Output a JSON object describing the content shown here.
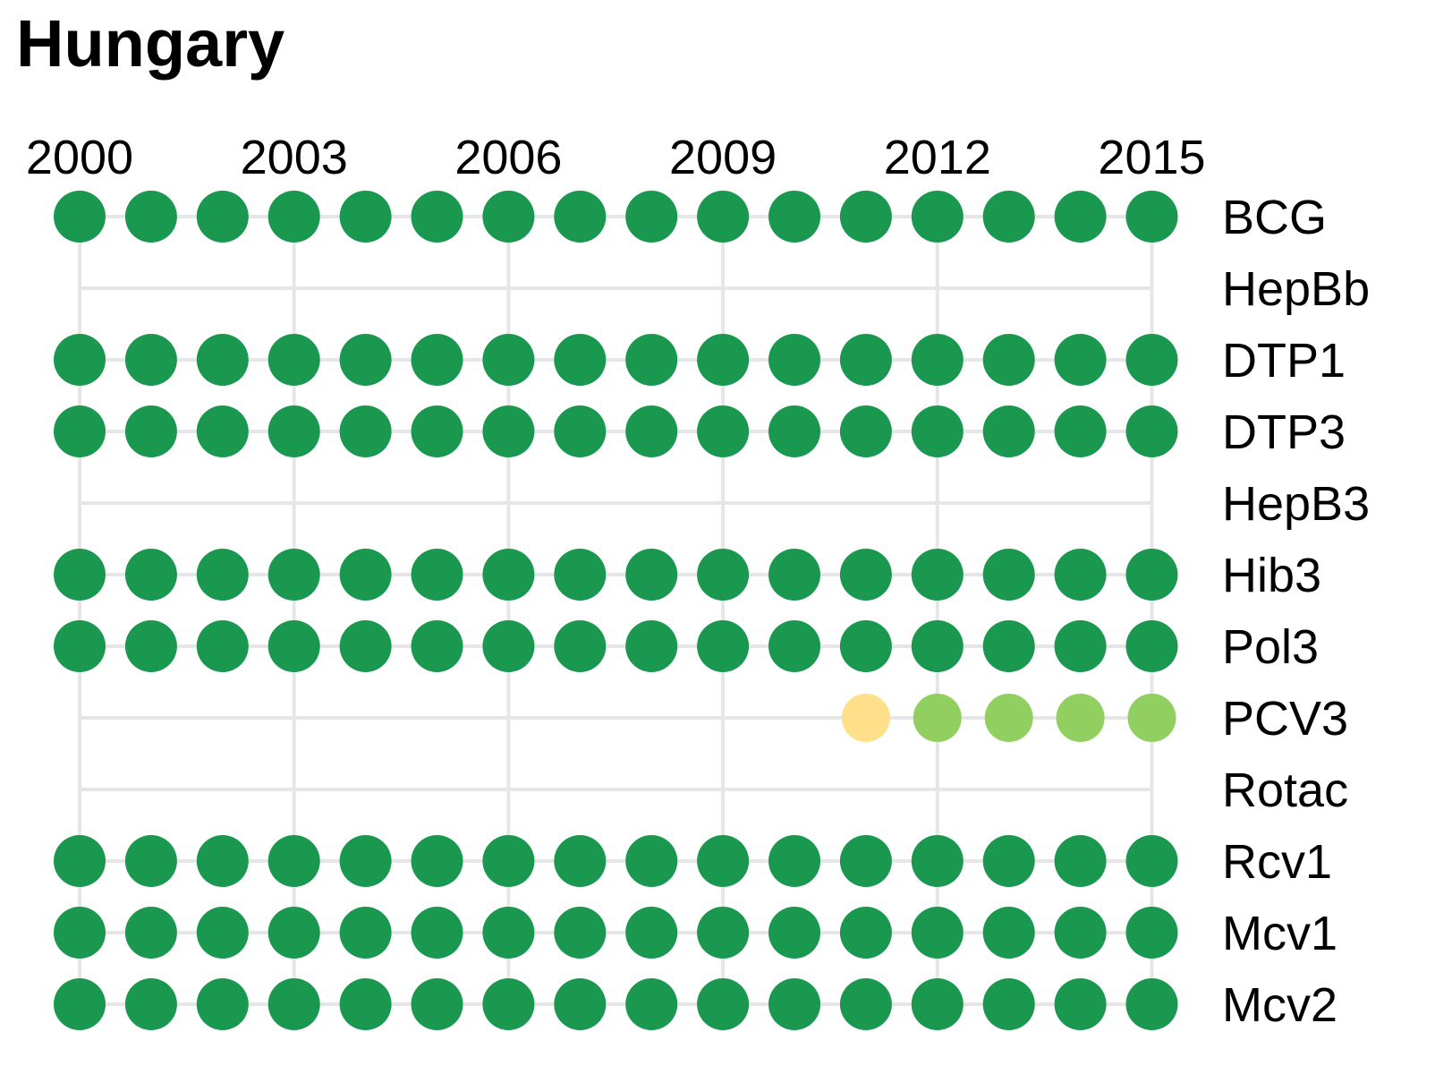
{
  "chart_data": {
    "type": "scatter",
    "title": "Hungary",
    "x_ticks": [
      "2000",
      "2003",
      "2006",
      "2009",
      "2012",
      "2015"
    ],
    "years": [
      2000,
      2001,
      2002,
      2003,
      2004,
      2005,
      2006,
      2007,
      2008,
      2009,
      2010,
      2011,
      2012,
      2013,
      2014,
      2015
    ],
    "grid": true,
    "colors": {
      "high": "#1a9850",
      "medium": "#91cf60",
      "low": "#fee08b",
      "grid": "#e6e6e6"
    },
    "rows": [
      {
        "label": "BCG",
        "levels": [
          "high",
          "high",
          "high",
          "high",
          "high",
          "high",
          "high",
          "high",
          "high",
          "high",
          "high",
          "high",
          "high",
          "high",
          "high",
          "high"
        ]
      },
      {
        "label": "HepBb",
        "levels": [
          null,
          null,
          null,
          null,
          null,
          null,
          null,
          null,
          null,
          null,
          null,
          null,
          null,
          null,
          null,
          null
        ]
      },
      {
        "label": "DTP1",
        "levels": [
          "high",
          "high",
          "high",
          "high",
          "high",
          "high",
          "high",
          "high",
          "high",
          "high",
          "high",
          "high",
          "high",
          "high",
          "high",
          "high"
        ]
      },
      {
        "label": "DTP3",
        "levels": [
          "high",
          "high",
          "high",
          "high",
          "high",
          "high",
          "high",
          "high",
          "high",
          "high",
          "high",
          "high",
          "high",
          "high",
          "high",
          "high"
        ]
      },
      {
        "label": "HepB3",
        "levels": [
          null,
          null,
          null,
          null,
          null,
          null,
          null,
          null,
          null,
          null,
          null,
          null,
          null,
          null,
          null,
          null
        ]
      },
      {
        "label": "Hib3",
        "levels": [
          "high",
          "high",
          "high",
          "high",
          "high",
          "high",
          "high",
          "high",
          "high",
          "high",
          "high",
          "high",
          "high",
          "high",
          "high",
          "high"
        ]
      },
      {
        "label": "Pol3",
        "levels": [
          "high",
          "high",
          "high",
          "high",
          "high",
          "high",
          "high",
          "high",
          "high",
          "high",
          "high",
          "high",
          "high",
          "high",
          "high",
          "high"
        ]
      },
      {
        "label": "PCV3",
        "levels": [
          null,
          null,
          null,
          null,
          null,
          null,
          null,
          null,
          null,
          null,
          null,
          "low",
          "medium",
          "medium",
          "medium",
          "medium"
        ]
      },
      {
        "label": "Rotac",
        "levels": [
          null,
          null,
          null,
          null,
          null,
          null,
          null,
          null,
          null,
          null,
          null,
          null,
          null,
          null,
          null,
          null
        ]
      },
      {
        "label": "Rcv1",
        "levels": [
          "high",
          "high",
          "high",
          "high",
          "high",
          "high",
          "high",
          "high",
          "high",
          "high",
          "high",
          "high",
          "high",
          "high",
          "high",
          "high"
        ]
      },
      {
        "label": "Mcv1",
        "levels": [
          "high",
          "high",
          "high",
          "high",
          "high",
          "high",
          "high",
          "high",
          "high",
          "high",
          "high",
          "high",
          "high",
          "high",
          "high",
          "high"
        ]
      },
      {
        "label": "Mcv2",
        "levels": [
          "high",
          "high",
          "high",
          "high",
          "high",
          "high",
          "high",
          "high",
          "high",
          "high",
          "high",
          "high",
          "high",
          "high",
          "high",
          "high"
        ]
      }
    ]
  }
}
